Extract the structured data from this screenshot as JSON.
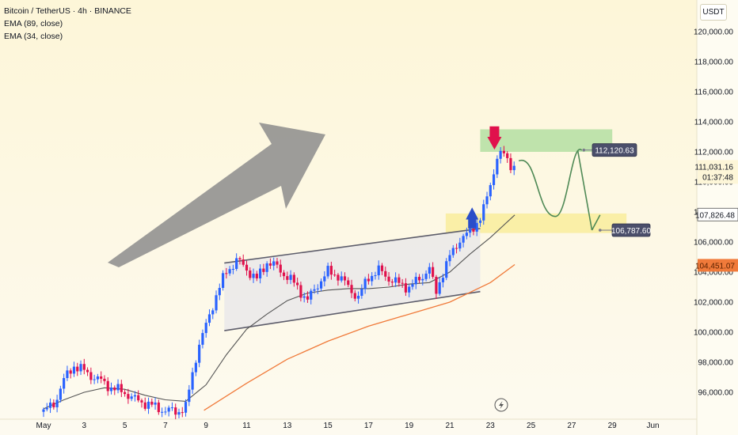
{
  "header": {
    "symbol_line": "Bitcoin / TetherUS · 4h · BINANCE",
    "indicator_1": "EMA (89, close)",
    "indicator_2": "EMA (34, close)",
    "currency_button": "USDT"
  },
  "price_badges": {
    "current_price": "111,031.16",
    "countdown": "01:37:48",
    "ema34_value": "107,826.48",
    "ema89_value": "104,451.07",
    "target_upper": "112,120.63",
    "target_lower": "106,787.60"
  },
  "colors": {
    "background_top": "#fdf6d8",
    "background_bottom": "#fdfaf0",
    "bull": "#2962ff",
    "bear": "#e0114c",
    "ema34": "#555555",
    "ema89": "#f07a3a",
    "resistance_zone": "#b8e0a6",
    "support_zone": "#faeda0",
    "arrow": "#8c8c8c",
    "projection": "#4f8a56"
  },
  "icons": {
    "down_arrow": "arrow-down-icon",
    "up_arrow": "arrow-up-icon",
    "lightning": "lightning-icon"
  },
  "chart_data": {
    "type": "candlestick",
    "title": "Bitcoin / TetherUS · 4h · BINANCE",
    "xlabel": "",
    "ylabel": "USDT",
    "ylim": [
      94800,
      121400
    ],
    "x_ticks": [
      "May",
      "3",
      "5",
      "7",
      "9",
      "11",
      "13",
      "15",
      "17",
      "19",
      "21",
      "23",
      "25",
      "27",
      "29",
      "Jun"
    ],
    "y_ticks": [
      96000,
      98000,
      100000,
      102000,
      104000,
      106000,
      108000,
      110000,
      112000,
      114000,
      116000,
      118000,
      120000
    ],
    "y_tick_labels": [
      "96,000.00",
      "98,000.00",
      "100,000.00",
      "102,000.00",
      "104,000.00",
      "106,000.00",
      "108,000.00",
      "110,000.00",
      "112,000.00",
      "114,000.00",
      "116,000.00",
      "118,000.00",
      "120,000.00"
    ],
    "price_path_day": [
      0,
      0.5,
      1,
      1.5,
      2,
      2.5,
      3,
      3.5,
      4,
      4.5,
      5,
      5.5,
      6,
      6.5,
      7,
      7.3,
      7.6,
      8,
      8.5,
      9,
      9.5,
      10,
      10.5,
      11,
      11.5,
      12,
      12.5,
      13,
      13.5,
      14,
      14.5,
      15,
      15.5,
      16,
      16.5,
      17,
      17.5,
      18,
      18.5,
      19,
      19.3,
      19.6,
      20,
      20.5,
      21,
      21.3,
      21.6,
      22,
      22.3,
      22.6,
      23,
      23.2
    ],
    "price_path": [
      94700,
      95200,
      96800,
      97800,
      97400,
      97000,
      96600,
      96200,
      96000,
      95500,
      95300,
      95000,
      94800,
      94700,
      95000,
      97000,
      99000,
      100400,
      102500,
      104000,
      104800,
      104200,
      103500,
      104700,
      104300,
      103700,
      103000,
      102100,
      103200,
      104000,
      103800,
      103000,
      102300,
      103700,
      104100,
      103600,
      103200,
      103000,
      103500,
      104300,
      102500,
      103800,
      105000,
      106200,
      106600,
      107300,
      107800,
      109800,
      111600,
      111900,
      111200,
      111000
    ],
    "ema34_day": [
      0,
      1,
      2,
      3,
      4,
      5,
      6,
      7,
      8,
      9,
      10,
      11,
      12,
      13,
      14,
      15,
      16,
      17,
      18,
      19,
      20,
      21,
      22,
      23.2
    ],
    "ema34": [
      94900,
      95500,
      96000,
      96300,
      96200,
      95800,
      95500,
      95400,
      96500,
      98500,
      100200,
      101200,
      102100,
      102600,
      102800,
      102900,
      102900,
      103000,
      103200,
      103300,
      104000,
      105200,
      106300,
      107800
    ],
    "ema89_day": [
      7.9,
      10,
      12,
      14,
      16,
      18,
      20,
      22,
      23.2
    ],
    "ema89": [
      94800,
      96600,
      98200,
      99400,
      100400,
      101200,
      102000,
      103300,
      104500
    ],
    "channel": {
      "upper": [
        [
          8.9,
          104600
        ],
        [
          21.5,
          106900
        ]
      ],
      "lower": [
        [
          8.9,
          100100
        ],
        [
          21.5,
          102700
        ]
      ]
    },
    "resistance_zone": {
      "day_start": 21.5,
      "day_end": 28.0,
      "price_low": 112000,
      "price_high": 113500
    },
    "support_zone": {
      "day_start": 19.8,
      "day_end": 28.7,
      "price_low": 106600,
      "price_high": 107900
    },
    "projection_day": [
      23.4,
      24.3,
      25.2,
      26.0,
      26.5,
      26.3,
      27.0,
      27.4
    ],
    "projection": [
      111400,
      111900,
      107700,
      111600,
      112100,
      112100,
      106787.6,
      107800
    ],
    "levels": [
      {
        "label": "112,120.63",
        "value": 112120.63,
        "day": 26.6
      },
      {
        "label": "106,787.60",
        "value": 106787.6,
        "day": 27.4
      }
    ]
  }
}
